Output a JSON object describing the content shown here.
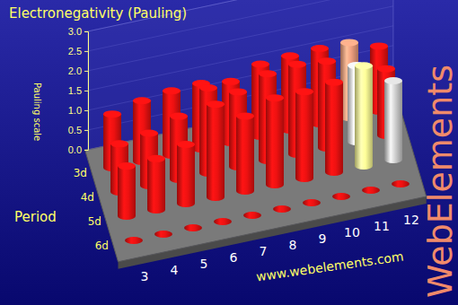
{
  "chart_data": {
    "type": "bar3d",
    "title": "Electronegativity (Pauling)",
    "ylabel": "Pauling scale",
    "depth_label": "Period",
    "categories": [
      "3",
      "4",
      "5",
      "6",
      "7",
      "8",
      "9",
      "10",
      "11",
      "12"
    ],
    "series": [
      {
        "name": "3d",
        "values": [
          1.36,
          1.54,
          1.63,
          1.66,
          1.55,
          1.83,
          1.88,
          1.91,
          1.9,
          1.65
        ],
        "colors": [
          "#ee1111",
          "#ee1111",
          "#ee1111",
          "#ee1111",
          "#ee1111",
          "#ee1111",
          "#ee1111",
          "#ee1111",
          "#f0a080",
          "#ee1111"
        ]
      },
      {
        "name": "4d",
        "values": [
          1.22,
          1.33,
          1.6,
          2.16,
          1.9,
          2.2,
          2.28,
          2.2,
          1.93,
          1.69
        ],
        "colors": [
          "#ee1111",
          "#ee1111",
          "#ee1111",
          "#ee1111",
          "#ee1111",
          "#ee1111",
          "#ee1111",
          "#ee1111",
          "#e0e0e0",
          "#ee1111"
        ]
      },
      {
        "name": "5d",
        "values": [
          1.27,
          1.3,
          1.5,
          2.36,
          1.9,
          2.2,
          2.2,
          2.28,
          2.54,
          2.0
        ],
        "colors": [
          "#ee1111",
          "#ee1111",
          "#ee1111",
          "#ee1111",
          "#ee1111",
          "#ee1111",
          "#ee1111",
          "#ee1111",
          "#ffff99",
          "#d0d0d0"
        ]
      },
      {
        "name": "6d",
        "values": [
          null,
          null,
          null,
          null,
          null,
          null,
          null,
          null,
          null,
          null
        ],
        "colors": [
          "#ee1111",
          "#ee1111",
          "#ee1111",
          "#ee1111",
          "#ee1111",
          "#ee1111",
          "#ee1111",
          "#ee1111",
          "#ee1111",
          "#ee1111"
        ]
      }
    ],
    "ylim": [
      0,
      3
    ],
    "yticks": [
      {
        "value": 0,
        "label": "0.0"
      },
      0.5,
      {
        "value": 1,
        "label": "1.0"
      },
      1.5,
      {
        "value": 2,
        "label": "2.0"
      },
      2.5,
      {
        "value": 3,
        "label": "3.0"
      }
    ],
    "annotations": [
      "www.webelements.com",
      "WebElements"
    ]
  }
}
